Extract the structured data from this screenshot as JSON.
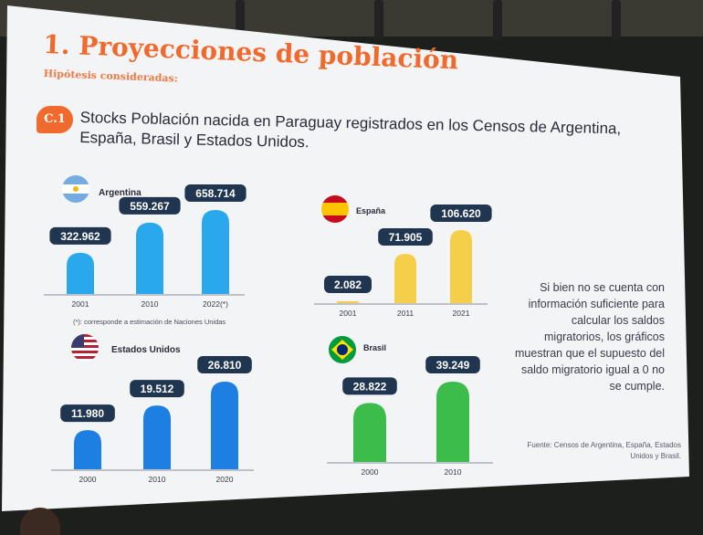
{
  "slide": {
    "title": "1. Proyecciones de población",
    "subtitle": "Hipótesis consideradas:",
    "badge": "C.1",
    "headline": "Stocks Población nacida en Paraguay registrados en los Censos de Argentina, España, Brasil y Estados Unidos.",
    "footnote": "(*): corresponde a estimación de Naciones Unidas",
    "side_note": "Si bien no se cuenta con información suficiente para calcular los saldos migratorios, los gráficos muestran que el supuesto del saldo migratorio igual a 0 no se cumple.",
    "source": "Fuente: Censos de Argentina, España, Estados Unidos y Brasil."
  },
  "colors": {
    "accent": "#f06a2e",
    "argentina_bar": "#29a8ee",
    "espana_bar": "#f5cf4a",
    "usa_bar": "#1e7fe3",
    "brasil_bar": "#3cbc4a",
    "label_box": "#1f3550"
  },
  "chart_data": [
    {
      "type": "bar",
      "title": "Argentina",
      "flag_icon": "argentina-flag-icon",
      "categories": [
        "2001",
        "2010",
        "2022(*)"
      ],
      "values": [
        322962,
        559267,
        658714
      ],
      "value_labels": [
        "322.962",
        "559.267",
        "658.714"
      ]
    },
    {
      "type": "bar",
      "title": "España",
      "flag_icon": "spain-flag-icon",
      "categories": [
        "2001",
        "2011",
        "2021"
      ],
      "values": [
        2082,
        71905,
        106620
      ],
      "value_labels": [
        "2.082",
        "71.905",
        "106.620"
      ]
    },
    {
      "type": "bar",
      "title": "Estados Unidos",
      "flag_icon": "usa-flag-icon",
      "categories": [
        "2000",
        "2010",
        "2020"
      ],
      "values": [
        11980,
        19512,
        26810
      ],
      "value_labels": [
        "11.980",
        "19.512",
        "26.810"
      ]
    },
    {
      "type": "bar",
      "title": "Brasil",
      "flag_icon": "brazil-flag-icon",
      "categories": [
        "2000",
        "2010"
      ],
      "values": [
        28822,
        39249
      ],
      "value_labels": [
        "28.822",
        "39.249"
      ]
    }
  ]
}
